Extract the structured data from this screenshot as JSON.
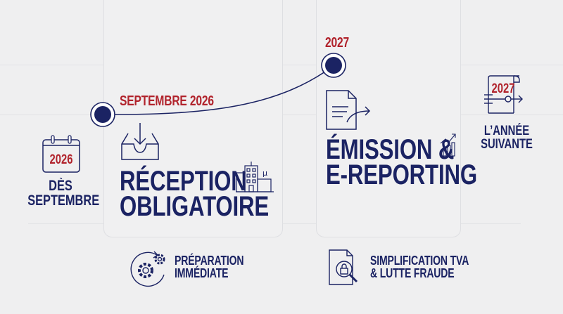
{
  "colors": {
    "navy": "#1b2363",
    "red": "#b1232c",
    "background": "#efeff0"
  },
  "left": {
    "icon": "calendar-icon",
    "year": "2026",
    "label_line1": "DÈS",
    "label_line2": "SEPTEMBRE"
  },
  "milestone1": {
    "date": "SEPTEMBRE 2026",
    "icon": "inbox-download-icon",
    "title_line1": "RÉCEPTION",
    "title_line2": "OBLIGATOIRE",
    "side_icon": "buildings-icon"
  },
  "milestone2": {
    "date": "2027",
    "icon": "document-send-icon",
    "title_line1": "ÉMISSION &",
    "title_line2": "E-REPORTING",
    "side_icon": "growth-chart-icon"
  },
  "right": {
    "icon": "document-flow-icon",
    "year": "2027",
    "label_line1": "L’ANNÉE",
    "label_line2": "SUIVANTE"
  },
  "bottom": [
    {
      "icon": "gears-cycle-icon",
      "line1": "PRÉPARATION",
      "line2": "IMMÉDIATE"
    },
    {
      "icon": "document-search-lock-icon",
      "line1": "SIMPLIFICATION TVA",
      "line2": "& LUTTE FRAUDE"
    }
  ]
}
